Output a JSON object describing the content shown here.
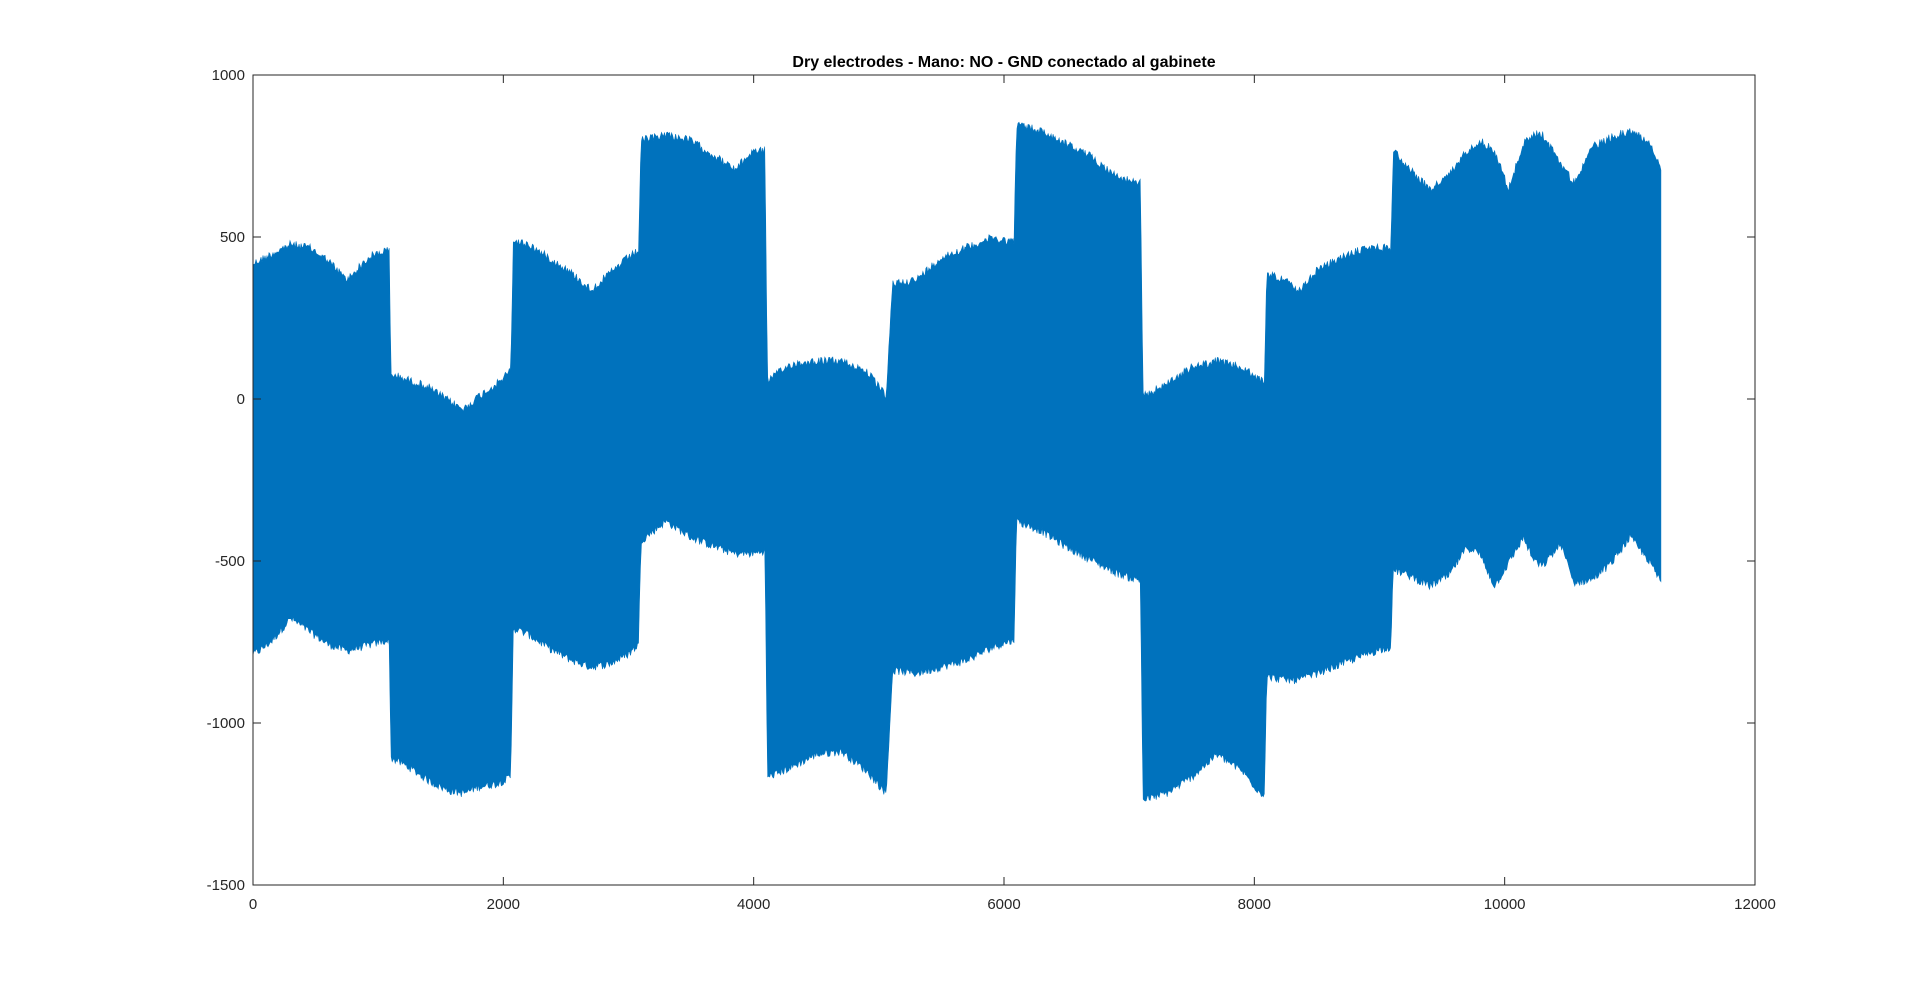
{
  "chart_data": {
    "type": "area",
    "title": "Dry electrodes - Mano: NO - GND conectado al gabinete",
    "xlabel": "",
    "ylabel": "",
    "xlim": [
      0,
      12000
    ],
    "ylim": [
      -1500,
      1000
    ],
    "xticks": [
      0,
      2000,
      4000,
      6000,
      8000,
      10000,
      12000
    ],
    "yticks": [
      -1500,
      -1000,
      -500,
      0,
      500,
      1000
    ],
    "xtick_labels": [
      "0",
      "2000",
      "4000",
      "6000",
      "8000",
      "10000",
      "12000"
    ],
    "ytick_labels": [
      "-1500",
      "-1000",
      "-500",
      "0",
      "500",
      "1000"
    ],
    "grid": false,
    "legend": "none",
    "series_color": "#0072BD",
    "series": [
      {
        "x": [
          0,
          50,
          150,
          300,
          450,
          600,
          750,
          850,
          950,
          1050,
          1090,
          1100,
          1250,
          1400,
          1550,
          1680,
          1800,
          1950,
          2060,
          2080,
          2200,
          2400,
          2550,
          2700,
          2850,
          3000,
          3080,
          3100,
          3300,
          3500,
          3700,
          3850,
          4000,
          4090,
          4110,
          4300,
          4500,
          4700,
          4900,
          5060,
          5110,
          5300,
          5500,
          5700,
          5900,
          6050,
          6080,
          6100,
          6300,
          6500,
          6700,
          6900,
          7050,
          7090,
          7110,
          7300,
          7500,
          7700,
          7900,
          8050,
          8080,
          8100,
          8250,
          8350,
          8500,
          8700,
          8900,
          9050,
          9090,
          9110,
          9250,
          9400,
          9550,
          9700,
          9800,
          9920,
          10030,
          10150,
          10230,
          10300,
          10450,
          10550,
          10700,
          10850,
          11000,
          11150,
          11250
        ],
        "upper": [
          430,
          440,
          460,
          490,
          480,
          440,
          380,
          420,
          455,
          470,
          470,
          90,
          70,
          50,
          10,
          -20,
          20,
          60,
          100,
          500,
          490,
          440,
          400,
          350,
          400,
          450,
          470,
          810,
          830,
          810,
          760,
          720,
          780,
          780,
          70,
          120,
          130,
          130,
          100,
          20,
          370,
          380,
          450,
          480,
          510,
          500,
          500,
          860,
          840,
          800,
          760,
          700,
          680,
          680,
          20,
          60,
          110,
          130,
          110,
          70,
          70,
          400,
          380,
          340,
          410,
          450,
          480,
          480,
          480,
          780,
          720,
          660,
          700,
          780,
          810,
          780,
          660,
          800,
          830,
          830,
          740,
          680,
          790,
          820,
          840,
          810,
          720
        ],
        "lower": [
          -800,
          -790,
          -760,
          -690,
          -730,
          -770,
          -790,
          -780,
          -770,
          -760,
          -760,
          -1120,
          -1150,
          -1190,
          -1220,
          -1230,
          -1210,
          -1200,
          -1180,
          -720,
          -740,
          -790,
          -820,
          -840,
          -830,
          -800,
          -770,
          -450,
          -390,
          -440,
          -470,
          -490,
          -490,
          -480,
          -1180,
          -1150,
          -1110,
          -1100,
          -1160,
          -1230,
          -850,
          -860,
          -840,
          -820,
          -780,
          -760,
          -760,
          -390,
          -420,
          -470,
          -510,
          -550,
          -570,
          -570,
          -1250,
          -1230,
          -1180,
          -1110,
          -1160,
          -1230,
          -1230,
          -870,
          -880,
          -880,
          -860,
          -830,
          -800,
          -780,
          -780,
          -540,
          -560,
          -590,
          -560,
          -470,
          -490,
          -590,
          -520,
          -440,
          -510,
          -530,
          -460,
          -580,
          -570,
          -520,
          -440,
          -510,
          -580
        ]
      }
    ]
  }
}
